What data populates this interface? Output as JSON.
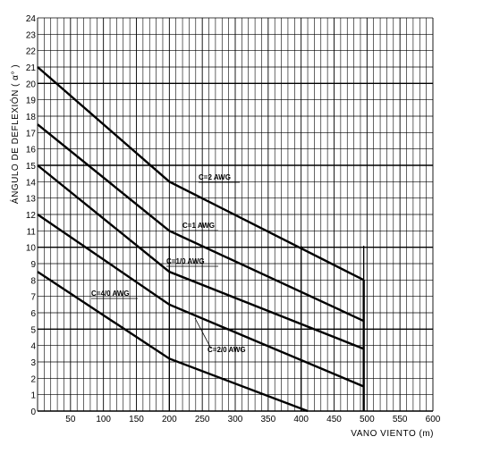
{
  "chart_data": {
    "type": "line",
    "xlabel": "VANO  VIENTO  (m)",
    "ylabel": "ÁNGULO  DE  DEFLEXIÓN  ( α° )",
    "xlim": [
      0,
      600
    ],
    "ylim": [
      0,
      24
    ],
    "x_ticks": [
      "50",
      "100",
      "150",
      "200",
      "250",
      "300",
      "350",
      "400",
      "450",
      "500",
      "550",
      "600"
    ],
    "y_ticks": [
      "0",
      "1",
      "2",
      "3",
      "4",
      "5",
      "6",
      "7",
      "8",
      "9",
      "10",
      "11",
      "12",
      "13",
      "14",
      "15",
      "16",
      "17",
      "18",
      "19",
      "20",
      "21",
      "22",
      "23",
      "24"
    ],
    "grid": true,
    "series": [
      {
        "name": "C=2 AWG",
        "points": [
          [
            0,
            21
          ],
          [
            200,
            14
          ],
          [
            495,
            8
          ]
        ]
      },
      {
        "name": "C=1 AWG",
        "points": [
          [
            0,
            17.5
          ],
          [
            200,
            11
          ],
          [
            495,
            5.5
          ]
        ]
      },
      {
        "name": "C=1/0 AWG",
        "points": [
          [
            0,
            15
          ],
          [
            200,
            8.5
          ],
          [
            495,
            3.8
          ]
        ]
      },
      {
        "name": "C=2/0 AWG",
        "points": [
          [
            0,
            12
          ],
          [
            200,
            6.5
          ],
          [
            495,
            1.5
          ]
        ]
      },
      {
        "name": "C=4/0 AWG",
        "points": [
          [
            0,
            8.5
          ],
          [
            200,
            3.2
          ],
          [
            410,
            0
          ]
        ]
      }
    ]
  }
}
